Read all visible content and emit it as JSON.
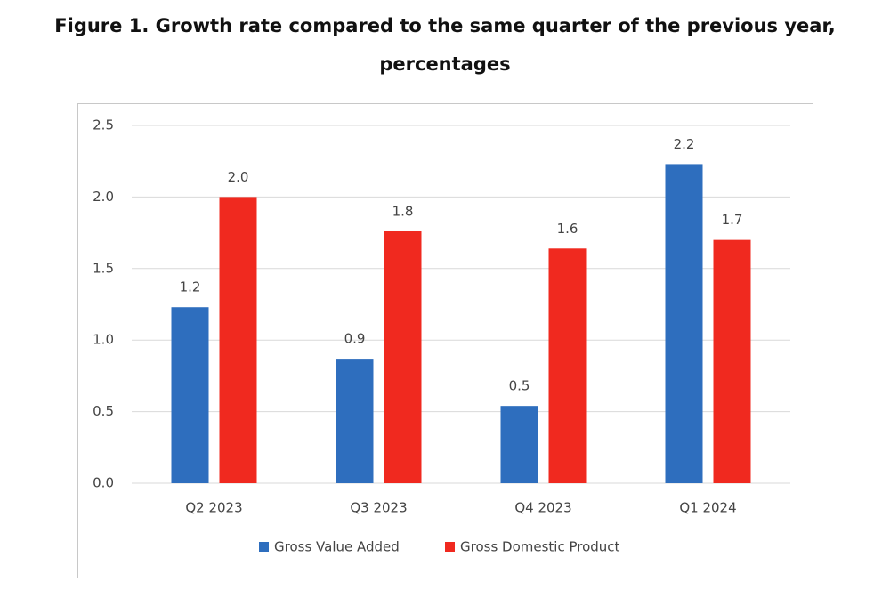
{
  "chart_data": {
    "type": "bar",
    "title": "Figure 1. Growth rate compared to the same quarter of the previous year, percentages",
    "categories": [
      "Q2 2023",
      "Q3 2023",
      "Q4 2023",
      "Q1 2024"
    ],
    "series": [
      {
        "name": "Gross Value Added",
        "color": "#2e6ebe",
        "values": [
          1.23,
          0.87,
          0.54,
          2.23
        ],
        "value_labels": [
          "1.2",
          "0.9",
          "0.5",
          "2.2"
        ]
      },
      {
        "name": "Gross Domestic Product",
        "color": "#f0291f",
        "values": [
          2.0,
          1.76,
          1.64,
          1.7
        ],
        "value_labels": [
          "2.0",
          "1.8",
          "1.6",
          "1.7"
        ]
      }
    ],
    "ylim": [
      0,
      2.5
    ],
    "yticks": [
      {
        "value": 0,
        "label": "0.0"
      },
      0.5,
      {
        "value": 1,
        "label": "1.0"
      },
      1.5,
      {
        "value": 2,
        "label": "2.0"
      },
      2.5
    ],
    "grid": true,
    "legend": "bottom"
  }
}
